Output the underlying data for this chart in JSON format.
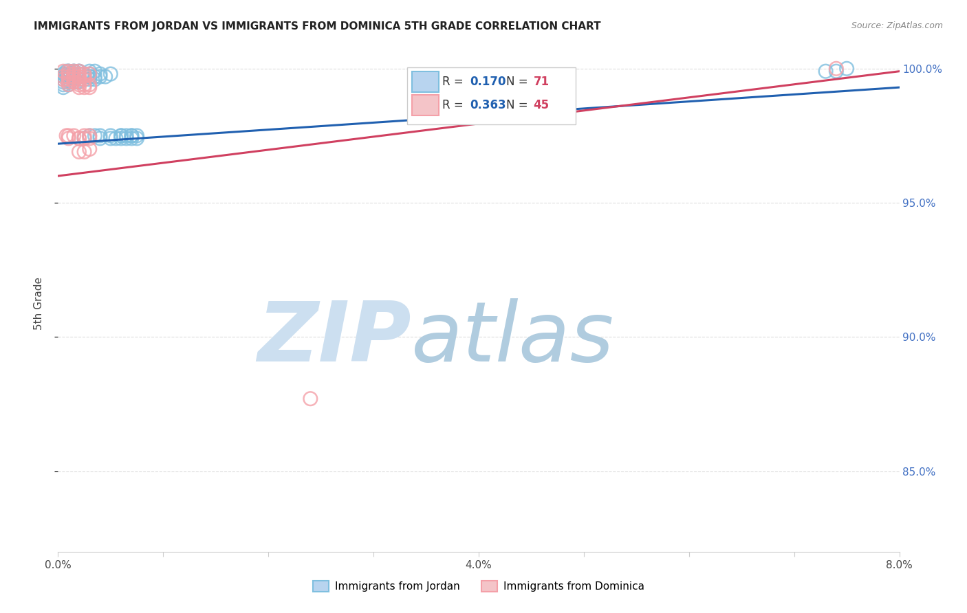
{
  "title": "IMMIGRANTS FROM JORDAN VS IMMIGRANTS FROM DOMINICA 5TH GRADE CORRELATION CHART",
  "source": "Source: ZipAtlas.com",
  "ylabel": "5th Grade",
  "R_blue": 0.17,
  "N_blue": 71,
  "R_pink": 0.363,
  "N_pink": 45,
  "blue_scatter_color": "#7fbfdf",
  "pink_scatter_color": "#f4a0a8",
  "line_blue": "#2060b0",
  "line_pink": "#d04060",
  "watermark_zip": "ZIP",
  "watermark_atlas": "atlas",
  "watermark_color_zip": "#ccdff0",
  "watermark_color_atlas": "#b8d4e8",
  "legend_label_blue": "Immigrants from Jordan",
  "legend_label_pink": "Immigrants from Dominica",
  "xlim": [
    0.0,
    0.08
  ],
  "ylim": [
    0.82,
    1.005
  ],
  "blue_line_y0": 0.972,
  "blue_line_y1": 0.993,
  "pink_line_y0": 0.96,
  "pink_line_y1": 0.999,
  "jordan_x": [
    0.001,
    0.001,
    0.0015,
    0.002,
    0.002,
    0.002,
    0.003,
    0.003,
    0.003,
    0.0035,
    0.0008,
    0.0008,
    0.001,
    0.001,
    0.0012,
    0.0015,
    0.0015,
    0.002,
    0.002,
    0.0025,
    0.0005,
    0.0005,
    0.0005,
    0.0008,
    0.001,
    0.001,
    0.0012,
    0.0015,
    0.0015,
    0.002,
    0.0005,
    0.0005,
    0.0005,
    0.001,
    0.001,
    0.001,
    0.0012,
    0.0015,
    0.0018,
    0.002,
    0.002,
    0.0025,
    0.003,
    0.003,
    0.0035,
    0.004,
    0.004,
    0.0045,
    0.005,
    0.0035,
    0.0025,
    0.003,
    0.0035,
    0.004,
    0.004,
    0.005,
    0.005,
    0.006,
    0.0055,
    0.006,
    0.006,
    0.007,
    0.007,
    0.0065,
    0.0065,
    0.007,
    0.0075,
    0.0075,
    0.073,
    0.074,
    0.075
  ],
  "jordan_y": [
    0.999,
    0.998,
    0.999,
    0.999,
    0.998,
    0.997,
    0.999,
    0.998,
    0.997,
    0.999,
    0.999,
    0.998,
    0.999,
    0.998,
    0.998,
    0.999,
    0.998,
    0.999,
    0.998,
    0.998,
    0.998,
    0.997,
    0.996,
    0.997,
    0.998,
    0.997,
    0.997,
    0.998,
    0.997,
    0.997,
    0.995,
    0.994,
    0.993,
    0.996,
    0.995,
    0.994,
    0.995,
    0.996,
    0.995,
    0.996,
    0.995,
    0.996,
    0.997,
    0.996,
    0.997,
    0.998,
    0.997,
    0.997,
    0.998,
    0.996,
    0.974,
    0.975,
    0.975,
    0.975,
    0.974,
    0.975,
    0.974,
    0.975,
    0.974,
    0.975,
    0.974,
    0.975,
    0.974,
    0.975,
    0.974,
    0.975,
    0.975,
    0.974,
    0.999,
    0.999,
    1.0
  ],
  "dominica_x": [
    0.0005,
    0.001,
    0.001,
    0.0015,
    0.0015,
    0.002,
    0.002,
    0.002,
    0.0025,
    0.003,
    0.0005,
    0.0005,
    0.001,
    0.001,
    0.0015,
    0.0015,
    0.002,
    0.002,
    0.0025,
    0.0025,
    0.001,
    0.001,
    0.0015,
    0.002,
    0.002,
    0.0025,
    0.003,
    0.003,
    0.0025,
    0.002,
    0.0008,
    0.001,
    0.001,
    0.0015,
    0.002,
    0.0025,
    0.002,
    0.003,
    0.003,
    0.0025,
    0.002,
    0.0025,
    0.003,
    0.024,
    0.074
  ],
  "dominica_y": [
    0.999,
    0.999,
    0.998,
    0.999,
    0.998,
    0.999,
    0.998,
    0.997,
    0.998,
    0.998,
    0.997,
    0.996,
    0.997,
    0.996,
    0.997,
    0.996,
    0.997,
    0.996,
    0.997,
    0.996,
    0.995,
    0.994,
    0.995,
    0.995,
    0.994,
    0.994,
    0.994,
    0.993,
    0.993,
    0.993,
    0.975,
    0.975,
    0.974,
    0.975,
    0.974,
    0.975,
    0.974,
    0.975,
    0.974,
    0.974,
    0.969,
    0.969,
    0.97,
    0.877,
    1.0
  ]
}
